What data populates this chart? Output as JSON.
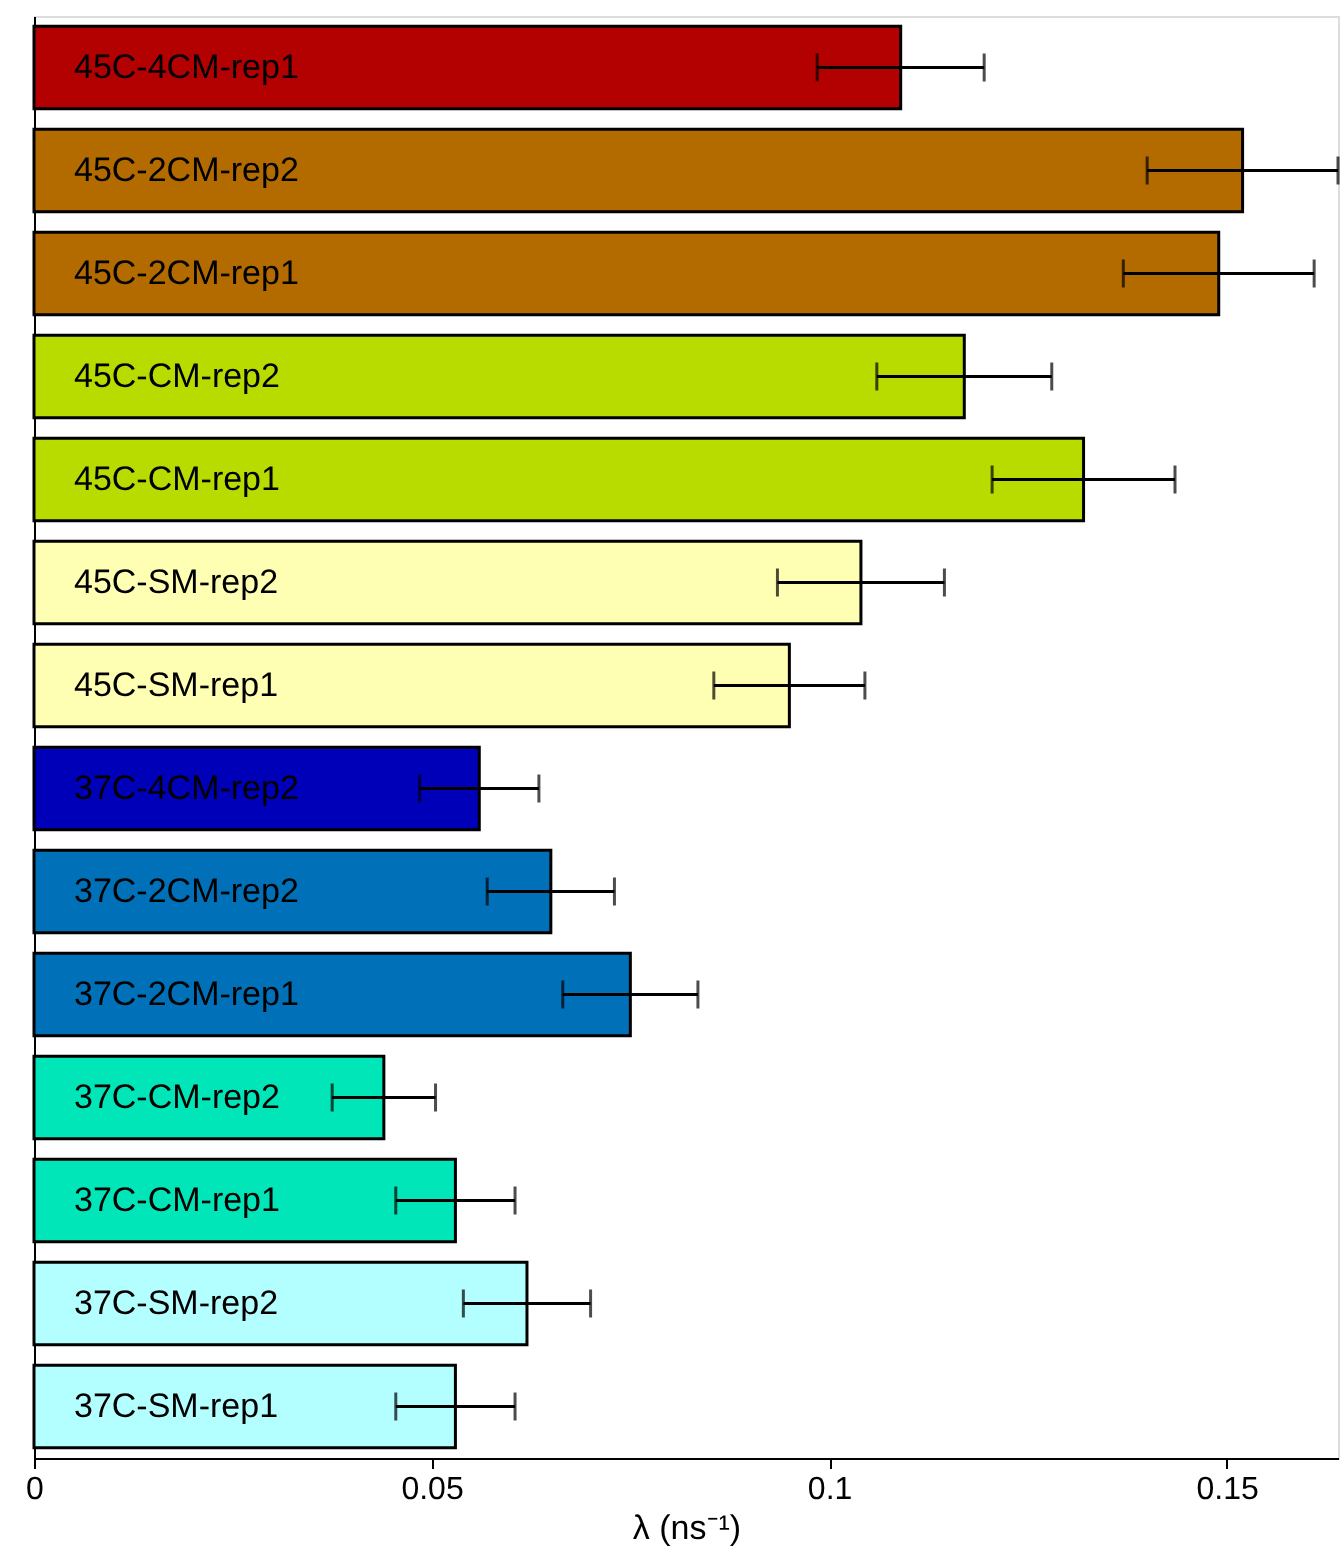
{
  "chart_data": {
    "type": "bar",
    "orientation": "horizontal",
    "xlabel": "λ (ns⁻¹)",
    "categories": [
      "45C-4CM-rep1",
      "45C-2CM-rep2",
      "45C-2CM-rep1",
      "45C-CM-rep2",
      "45C-CM-rep1",
      "45C-SM-rep2",
      "45C-SM-rep1",
      "37C-4CM-rep2",
      "37C-2CM-rep2",
      "37C-2CM-rep1",
      "37C-CM-rep2",
      "37C-CM-rep1",
      "37C-SM-rep2",
      "37C-SM-rep1"
    ],
    "values": [
      0.109,
      0.152,
      0.149,
      0.117,
      0.132,
      0.104,
      0.095,
      0.056,
      0.065,
      0.075,
      0.044,
      0.053,
      0.062,
      0.053
    ],
    "errors": [
      0.0105,
      0.012,
      0.012,
      0.011,
      0.0115,
      0.0105,
      0.0095,
      0.0075,
      0.008,
      0.0085,
      0.0065,
      0.0075,
      0.008,
      0.0075
    ],
    "colors": [
      "#b30000",
      "#b36b00",
      "#b36b00",
      "#b8dc00",
      "#b8dc00",
      "#ffffb3",
      "#ffffb3",
      "#0000b8",
      "#0070b8",
      "#0070b8",
      "#00e6b8",
      "#00e6b8",
      "#b3ffff",
      "#b3ffff"
    ],
    "xlim": [
      0,
      0.164
    ],
    "xticks": [
      0,
      0.05,
      0.1,
      0.15
    ],
    "grid": false,
    "legend": false
  }
}
